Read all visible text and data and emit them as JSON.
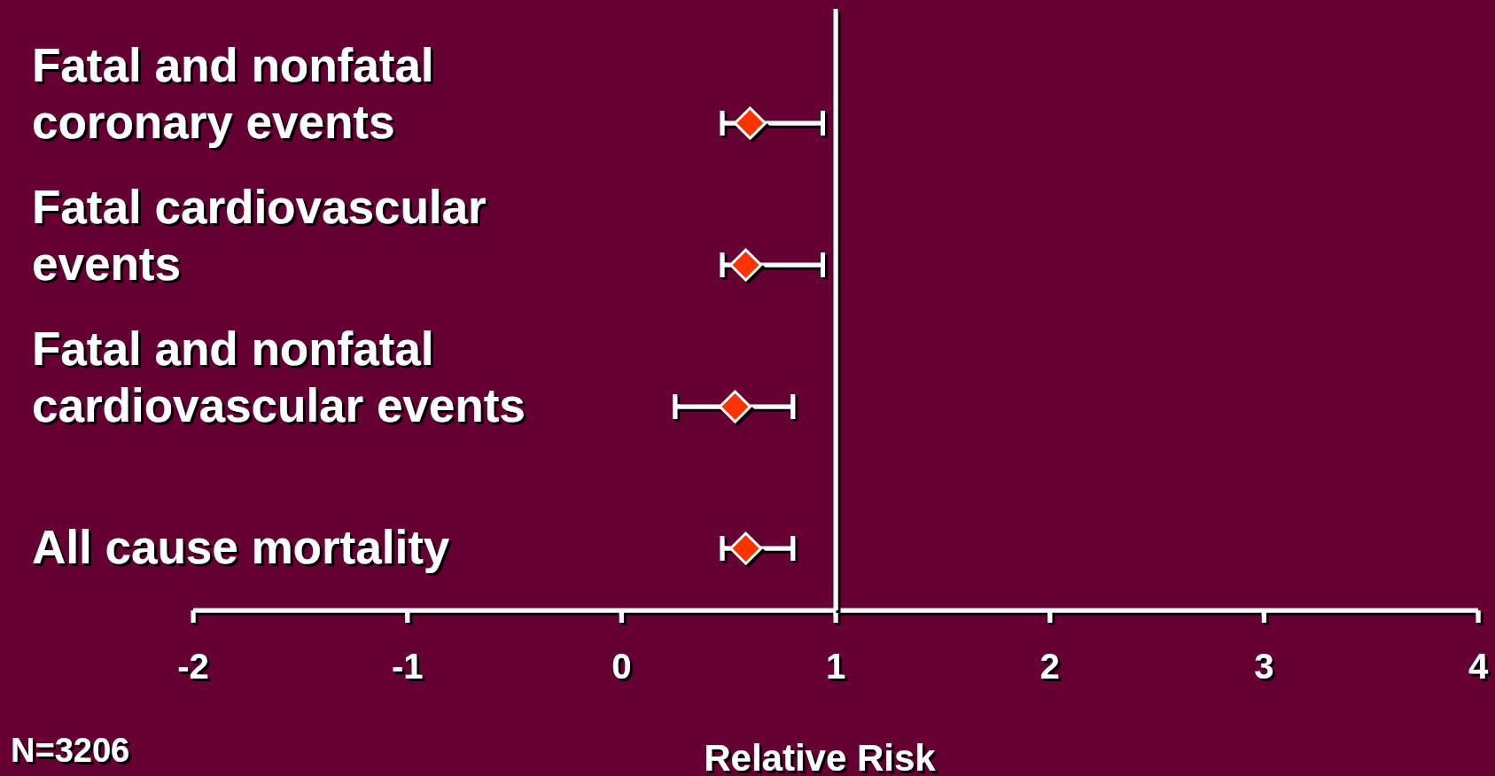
{
  "chart_data": {
    "type": "scatter",
    "orientation": "horizontal",
    "xlabel": "Relative Risk",
    "categories": [
      "Fatal and nonfatal coronary events",
      "Fatal cardiovascular events",
      "Fatal and nonfatal cardiovascular events",
      "All cause mortality"
    ],
    "series": [
      {
        "color": "#ff3300",
        "values": [
          0.6,
          0.58,
          0.53,
          0.58
        ],
        "errors": [
          [
            0.47,
            0.94
          ],
          [
            0.47,
            0.94
          ],
          [
            0.25,
            0.8
          ],
          [
            0.47,
            0.8
          ]
        ]
      }
    ],
    "marker": "diamond",
    "xlim": [
      -2,
      4
    ],
    "xticks": [
      -2,
      -1,
      0,
      1,
      2,
      3,
      4
    ],
    "ref_lines": [
      {
        "axis": "x",
        "value": 1,
        "color": "#ffffff"
      }
    ],
    "annotations": [
      "N=3206"
    ]
  }
}
